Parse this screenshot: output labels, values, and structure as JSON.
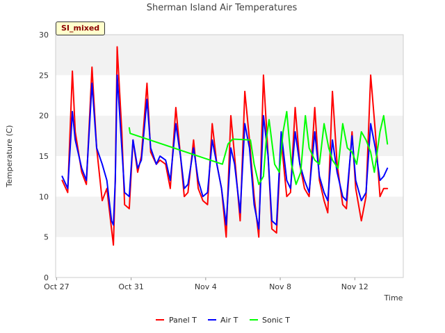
{
  "chart_data": {
    "type": "line",
    "title": "Sherman Island Air Temperatures",
    "xlabel": "Time",
    "ylabel": "Temperature (C)",
    "site_badge": "SI_mixed",
    "ylim": [
      0,
      30
    ],
    "yticks": [
      0,
      5,
      10,
      15,
      20,
      25,
      30
    ],
    "xlim": [
      -0.05,
      18.6
    ],
    "xticks": [
      {
        "day": 0,
        "label": "Oct 27"
      },
      {
        "day": 4,
        "label": "Oct 31"
      },
      {
        "day": 8,
        "label": "Nov 4"
      },
      {
        "day": 12,
        "label": "Nov 8"
      },
      {
        "day": 16,
        "label": "Nov 12"
      }
    ],
    "grid": "horizontal bands",
    "legend_position": "bottom",
    "series": [
      {
        "name": "Panel T",
        "color": "#ff0000",
        "x": [
          0.3,
          0.6,
          0.85,
          1.0,
          1.35,
          1.6,
          1.9,
          2.15,
          2.45,
          2.7,
          2.95,
          3.05,
          3.15,
          3.25,
          3.5,
          3.65,
          3.9,
          4.1,
          4.35,
          4.55,
          4.85,
          5.05,
          5.35,
          5.55,
          5.85,
          6.1,
          6.4,
          6.65,
          6.85,
          7.05,
          7.35,
          7.6,
          7.85,
          8.1,
          8.35,
          8.6,
          8.85,
          9.1,
          9.35,
          9.55,
          9.85,
          10.1,
          10.35,
          10.6,
          10.85,
          11.1,
          11.35,
          11.55,
          11.8,
          12.05,
          12.35,
          12.55,
          12.8,
          13.05,
          13.3,
          13.55,
          13.85,
          14.1,
          14.35,
          14.55,
          14.8,
          15.05,
          15.35,
          15.55,
          15.85,
          16.05,
          16.35,
          16.6,
          16.85,
          17.1,
          17.35,
          17.55,
          17.75
        ],
        "y": [
          12,
          10.5,
          25.5,
          18,
          13,
          11.5,
          26,
          16,
          9.5,
          11,
          6,
          4,
          12,
          28.5,
          18,
          9,
          8.5,
          17,
          13,
          15,
          24,
          15.5,
          14,
          14.5,
          14,
          11,
          21,
          15,
          10,
          10.5,
          17,
          11,
          9.5,
          9,
          19,
          14,
          11,
          5,
          20,
          15,
          7,
          23,
          17,
          10,
          5,
          25,
          15,
          6,
          5.5,
          17,
          10,
          10.5,
          21,
          14,
          11,
          10,
          21,
          12,
          9.5,
          8,
          23,
          14,
          9,
          8.5,
          18,
          11,
          7,
          10,
          25,
          18,
          10,
          11,
          11
        ]
      },
      {
        "name": "Air T",
        "color": "#0000ff",
        "x": [
          0.3,
          0.6,
          0.85,
          1.0,
          1.35,
          1.6,
          1.9,
          2.15,
          2.45,
          2.7,
          2.95,
          3.05,
          3.15,
          3.25,
          3.5,
          3.65,
          3.9,
          4.1,
          4.35,
          4.55,
          4.85,
          5.05,
          5.35,
          5.55,
          5.85,
          6.1,
          6.4,
          6.65,
          6.85,
          7.05,
          7.35,
          7.6,
          7.85,
          8.1,
          8.35,
          8.6,
          8.85,
          9.1,
          9.35,
          9.55,
          9.85,
          10.1,
          10.35,
          10.6,
          10.85,
          11.1,
          11.35,
          11.55,
          11.8,
          12.05,
          12.35,
          12.55,
          12.8,
          13.05,
          13.3,
          13.55,
          13.85,
          14.1,
          14.35,
          14.55,
          14.8,
          15.05,
          15.35,
          15.55,
          15.85,
          16.05,
          16.35,
          16.6,
          16.85,
          17.1,
          17.35,
          17.55,
          17.75
        ],
        "y": [
          12.5,
          11,
          20.5,
          17,
          13.5,
          12,
          24,
          16,
          14,
          12,
          7,
          6.5,
          12,
          25,
          16,
          10.5,
          10,
          17,
          13.5,
          14.5,
          22,
          16,
          14,
          15,
          14.5,
          12,
          19,
          15,
          11,
          11.5,
          16,
          12,
          10,
          10.5,
          17,
          14,
          11,
          6.5,
          16,
          14,
          8,
          19,
          16,
          9,
          6,
          20,
          15,
          7,
          6.5,
          18,
          12,
          11,
          18,
          14,
          12,
          10.5,
          18,
          12.5,
          10.5,
          9.5,
          17,
          13,
          10,
          9.5,
          17.5,
          12,
          9.5,
          10.5,
          19,
          16,
          12,
          12.5,
          13.5
        ]
      },
      {
        "name": "Sonic T",
        "color": "#00ff00",
        "x": [
          3.9,
          3.95,
          8.9,
          9.2,
          9.45,
          10.4,
          10.6,
          10.85,
          11.1,
          11.25,
          11.4,
          11.7,
          11.95,
          12.15,
          12.35,
          12.6,
          12.85,
          13.1,
          13.35,
          13.55,
          13.85,
          14.1,
          14.35,
          14.6,
          14.8,
          15.1,
          15.35,
          15.6,
          15.85,
          16.1,
          16.35,
          16.6,
          16.85,
          17.05,
          17.35,
          17.55,
          17.75
        ],
        "y": [
          18.5,
          17.8,
          14,
          16.5,
          17.1,
          17,
          14,
          11.5,
          12.5,
          17,
          19.5,
          14,
          13,
          18,
          20.5,
          14,
          11.5,
          13,
          20,
          16,
          14.5,
          14,
          19,
          16,
          14.5,
          13.5,
          19,
          16,
          15.5,
          14,
          18,
          17,
          15.5,
          13,
          18,
          20,
          16.5
        ]
      }
    ]
  }
}
